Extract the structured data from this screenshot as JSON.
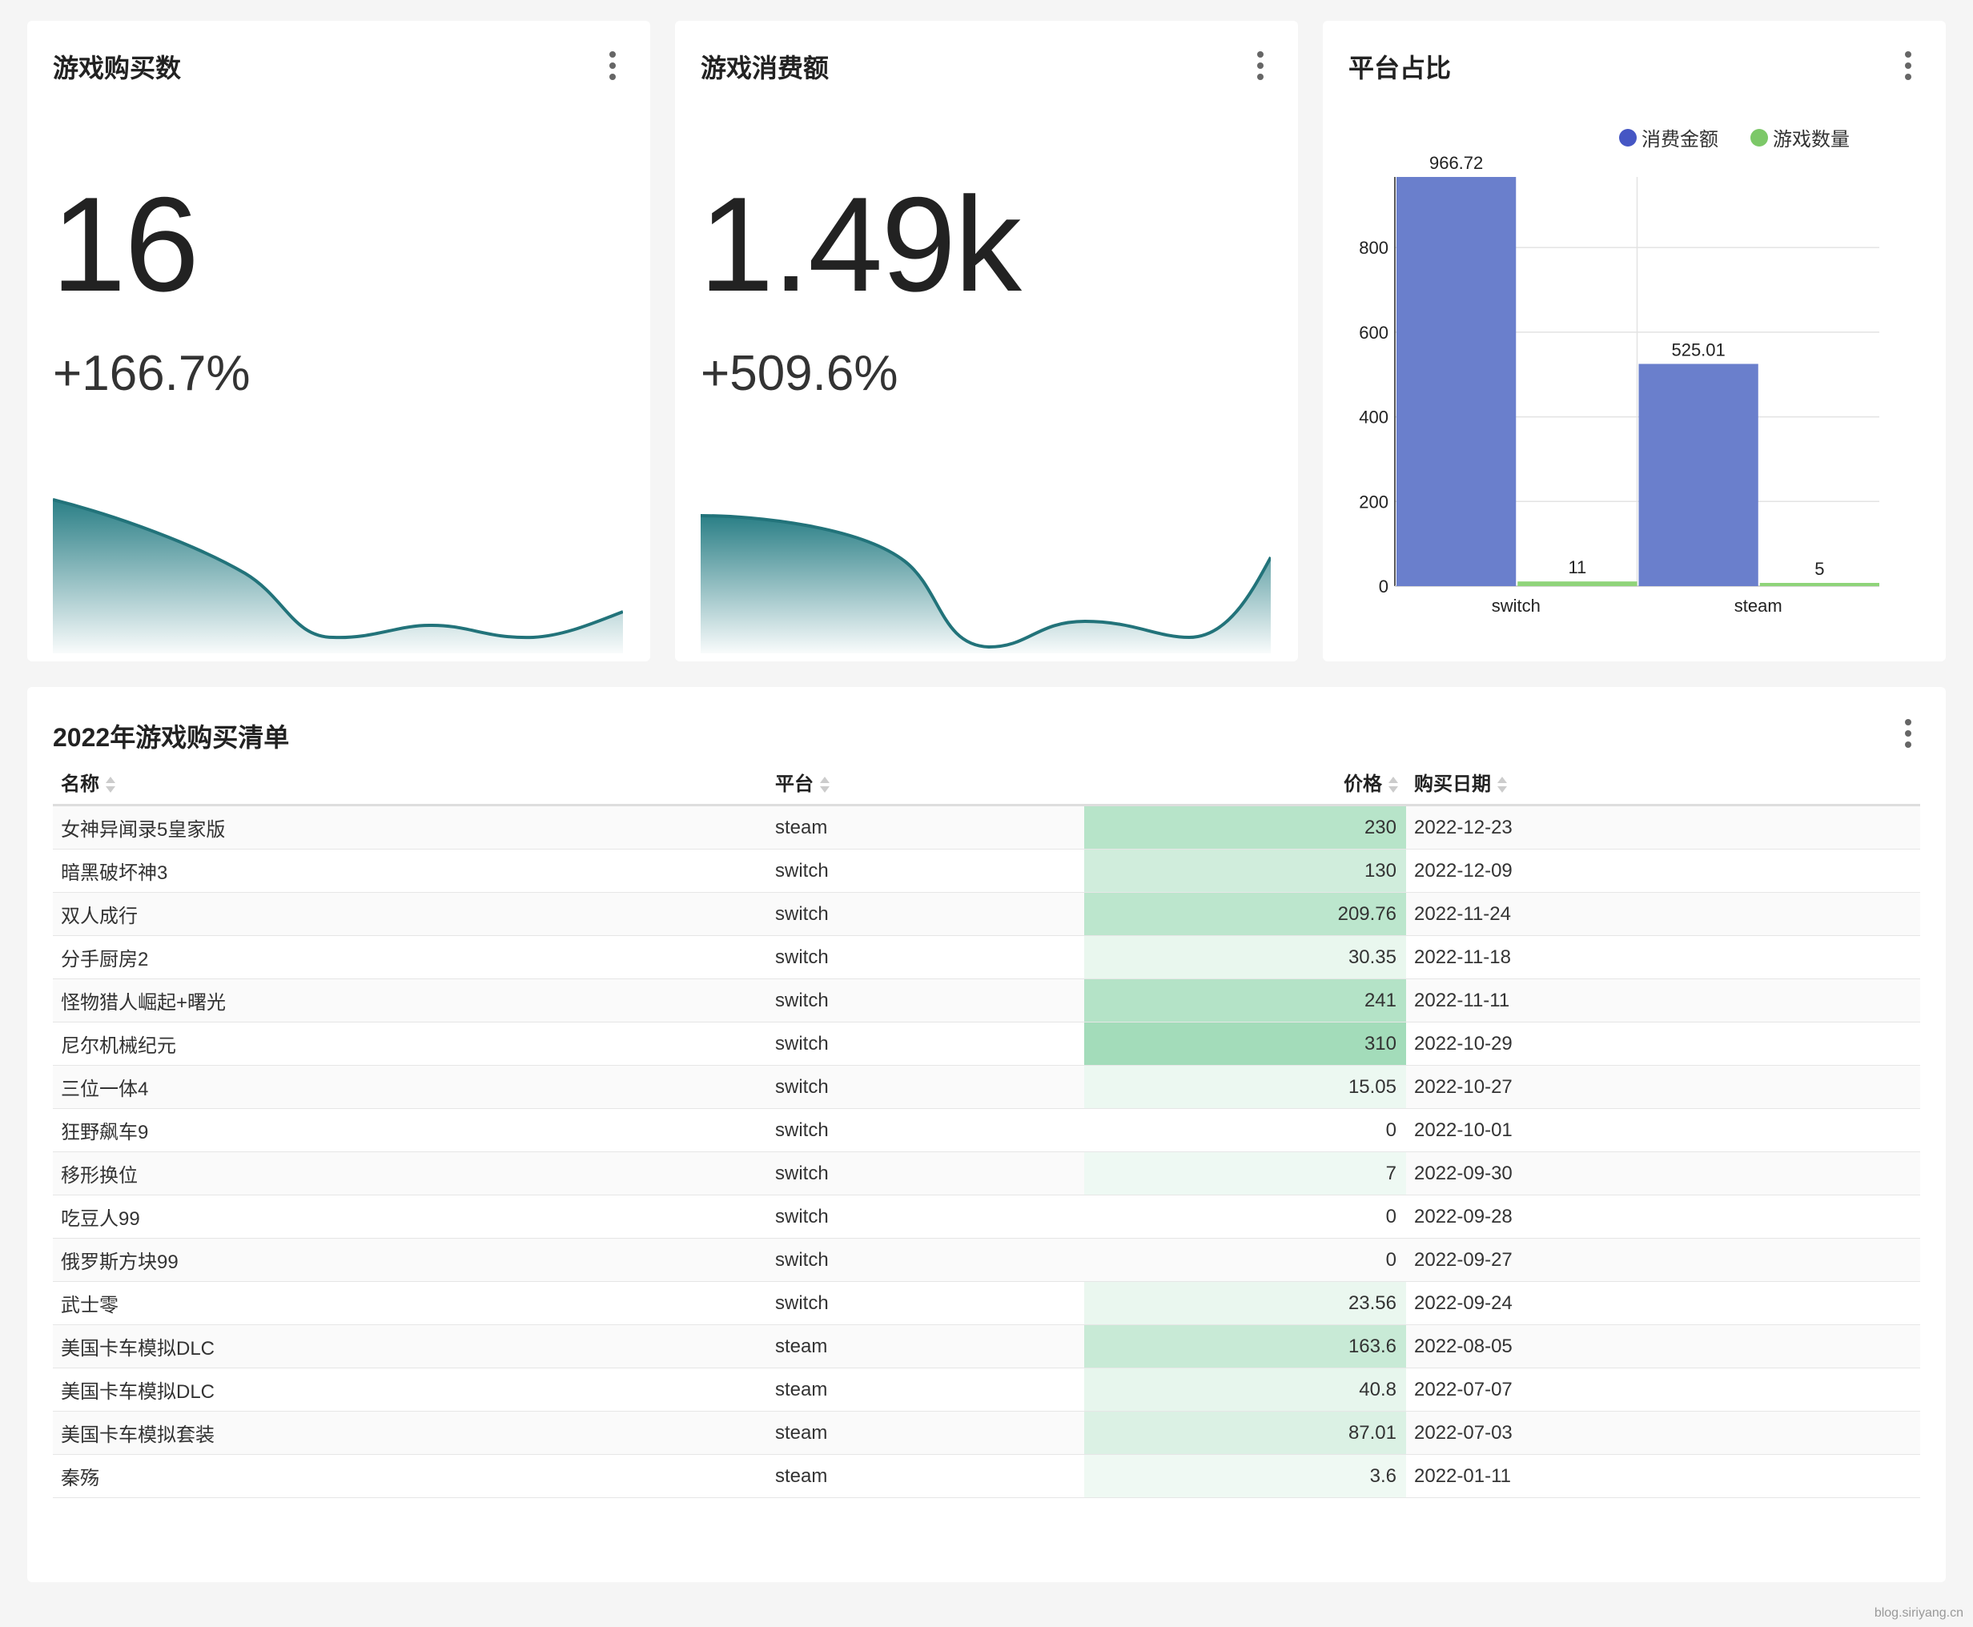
{
  "cards": {
    "purchases": {
      "title": "游戏购买数",
      "value": "16",
      "change": "+166.7%"
    },
    "spending": {
      "title": "游戏消费额",
      "value": "1.49k",
      "change": "+509.6%"
    },
    "platform": {
      "title": "平台占比"
    }
  },
  "chart_data": {
    "type": "bar",
    "categories": [
      "switch",
      "steam"
    ],
    "series": [
      {
        "name": "消费金额",
        "values": [
          966.72,
          525.01
        ],
        "color": "#6a7fcc"
      },
      {
        "name": "游戏数量",
        "values": [
          11,
          5
        ],
        "color": "#8fd47a"
      }
    ],
    "data_labels": [
      [
        "966.72",
        "525.01"
      ],
      [
        "11",
        "5"
      ]
    ],
    "yticks": [
      0,
      200,
      400,
      600,
      800
    ],
    "ylim": [
      0,
      966.72
    ],
    "legend_position": "top-right",
    "grid": true
  },
  "table": {
    "title": "2022年游戏购买清单",
    "columns": [
      "名称",
      "平台",
      "价格",
      "购买日期"
    ],
    "rows": [
      {
        "name": "女神异闻录5皇家版",
        "platform": "steam",
        "price": 230,
        "price_label": "230",
        "date": "2022-12-23"
      },
      {
        "name": "暗黑破坏神3",
        "platform": "switch",
        "price": 130,
        "price_label": "130",
        "date": "2022-12-09"
      },
      {
        "name": "双人成行",
        "platform": "switch",
        "price": 209.76,
        "price_label": "209.76",
        "date": "2022-11-24"
      },
      {
        "name": "分手厨房2",
        "platform": "switch",
        "price": 30.35,
        "price_label": "30.35",
        "date": "2022-11-18"
      },
      {
        "name": "怪物猎人崛起+曙光",
        "platform": "switch",
        "price": 241,
        "price_label": "241",
        "date": "2022-11-11"
      },
      {
        "name": "尼尔机械纪元",
        "platform": "switch",
        "price": 310,
        "price_label": "310",
        "date": "2022-10-29"
      },
      {
        "name": "三位一体4",
        "platform": "switch",
        "price": 15.05,
        "price_label": "15.05",
        "date": "2022-10-27"
      },
      {
        "name": "狂野飙车9",
        "platform": "switch",
        "price": 0,
        "price_label": "0",
        "date": "2022-10-01"
      },
      {
        "name": "移形换位",
        "platform": "switch",
        "price": 7,
        "price_label": "7",
        "date": "2022-09-30"
      },
      {
        "name": "吃豆人99",
        "platform": "switch",
        "price": 0,
        "price_label": "0",
        "date": "2022-09-28"
      },
      {
        "name": "俄罗斯方块99",
        "platform": "switch",
        "price": 0,
        "price_label": "0",
        "date": "2022-09-27"
      },
      {
        "name": "武士零",
        "platform": "switch",
        "price": 23.56,
        "price_label": "23.56",
        "date": "2022-09-24"
      },
      {
        "name": "美国卡车模拟DLC",
        "platform": "steam",
        "price": 163.6,
        "price_label": "163.6",
        "date": "2022-08-05"
      },
      {
        "name": "美国卡车模拟DLC",
        "platform": "steam",
        "price": 40.8,
        "price_label": "40.8",
        "date": "2022-07-07"
      },
      {
        "name": "美国卡车模拟套装",
        "platform": "steam",
        "price": 87.01,
        "price_label": "87.01",
        "date": "2022-07-03"
      },
      {
        "name": "秦殇",
        "platform": "steam",
        "price": 3.6,
        "price_label": "3.6",
        "date": "2022-01-11"
      }
    ]
  },
  "watermark": "blog.siriyang.cn"
}
